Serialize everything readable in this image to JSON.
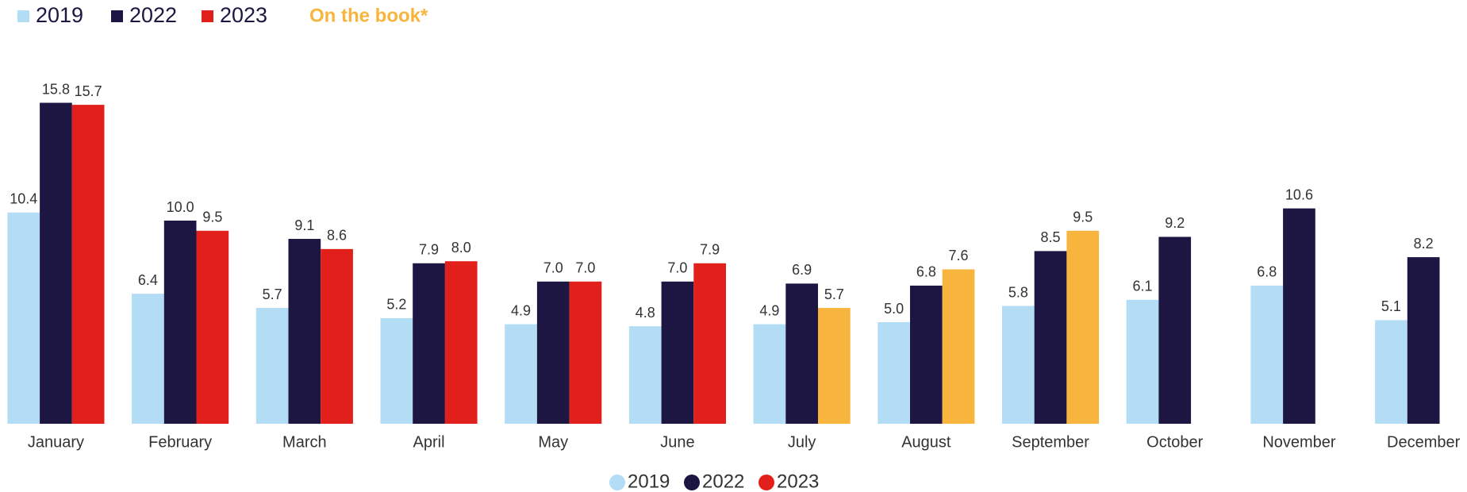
{
  "chart_data": {
    "type": "bar",
    "categories": [
      "January",
      "February",
      "March",
      "April",
      "May",
      "June",
      "July",
      "August",
      "September",
      "October",
      "November",
      "December"
    ],
    "series": [
      {
        "name": "2019",
        "color": "#b3dcf5",
        "values": [
          10.4,
          6.4,
          5.7,
          5.2,
          4.9,
          4.8,
          4.9,
          5.0,
          5.8,
          6.1,
          6.8,
          5.1
        ],
        "value_labels": [
          "10.4",
          "6.4",
          "5.7",
          "5.2",
          "4.9",
          "4.8",
          "4.9",
          "5.0",
          "5.8",
          "6.1",
          "6.8",
          "5.1"
        ]
      },
      {
        "name": "2022",
        "color": "#1e1642",
        "values": [
          15.8,
          10.0,
          9.1,
          7.9,
          7.0,
          7.0,
          6.9,
          6.8,
          8.5,
          9.2,
          10.6,
          8.2
        ],
        "value_labels": [
          "15.8",
          "10.0",
          "9.1",
          "7.9",
          "7.0",
          "7.0",
          "6.9",
          "6.8",
          "8.5",
          "9.2",
          "10.6",
          "8.2"
        ]
      },
      {
        "name": "2023",
        "color": "#e2201b",
        "values": [
          15.7,
          9.5,
          8.6,
          8.0,
          7.0,
          7.9,
          5.7,
          7.6,
          9.5,
          null,
          null,
          null
        ],
        "value_labels": [
          "15.7",
          "9.5",
          "8.6",
          "8.0",
          "7.0",
          "7.9",
          "5.7",
          "7.6",
          "9.5",
          null,
          null,
          null
        ],
        "point_colors": [
          "#e2201b",
          "#e2201b",
          "#e2201b",
          "#e2201b",
          "#e2201b",
          "#e2201b",
          "#f7b53d",
          "#f7b53d",
          "#f7b53d",
          null,
          null,
          null
        ]
      }
    ],
    "annotation": {
      "text": "On the book*",
      "color": "#f7b53d"
    },
    "legend": [
      "top-left",
      "bottom"
    ],
    "grid": false
  }
}
